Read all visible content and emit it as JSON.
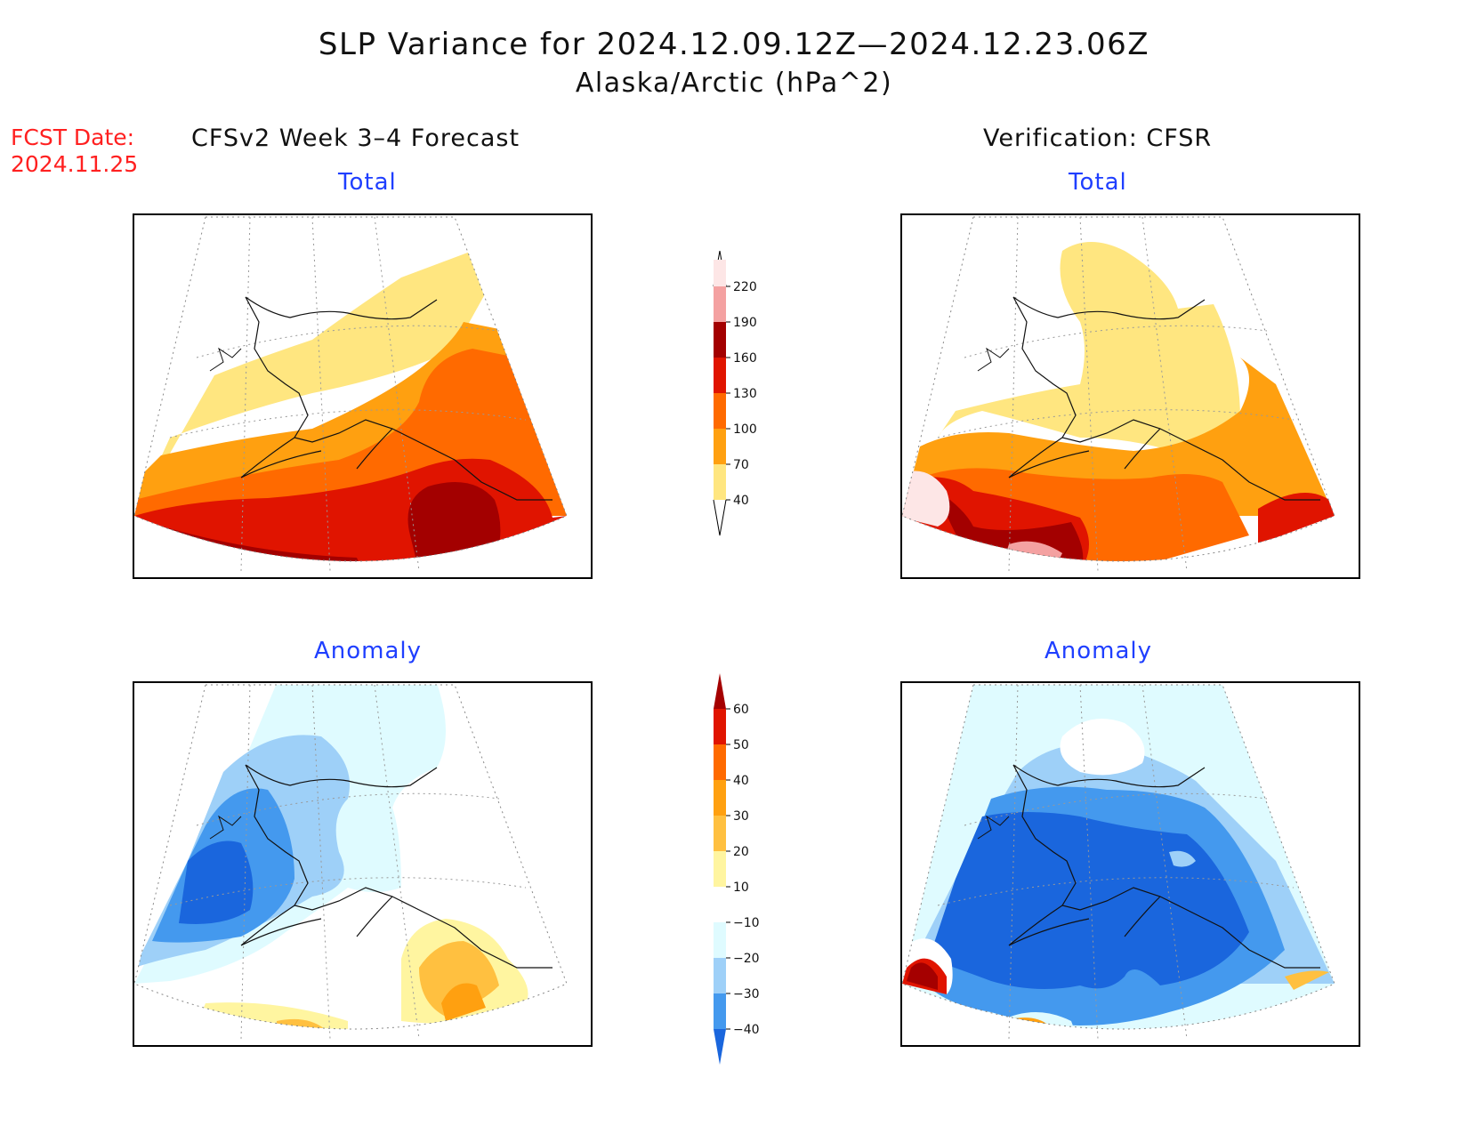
{
  "title": {
    "line1": "SLP Variance for 2024.12.09.12Z—2024.12.23.06Z",
    "line2": "Alaska/Arctic (hPa^2)"
  },
  "fcst": {
    "label": "FCST Date:",
    "date": "2024.11.25"
  },
  "columns": {
    "left": "CFSv2 Week 3–4 Forecast",
    "right": "Verification: CFSR"
  },
  "subtitles": {
    "total": "Total",
    "anomaly": "Anomaly"
  },
  "colorbars": {
    "total": {
      "levels": [
        "220",
        "190",
        "160",
        "130",
        "100",
        "70",
        "40"
      ],
      "colors": [
        "#fde6e6",
        "#f4a1a1",
        "#a30000",
        "#e01400",
        "#ff6a00",
        "#ffa010",
        "#ffe680"
      ]
    },
    "anomaly": {
      "levels": [
        "60",
        "50",
        "40",
        "30",
        "20",
        "10",
        "−10",
        "−20",
        "−30",
        "−40"
      ],
      "colors": [
        "#a50000",
        "#e01400",
        "#ff6a00",
        "#ffa010",
        "#ffc040",
        "#fff5a0",
        "#ffffff",
        "#dffbff",
        "#9ed0f8",
        "#4499ee",
        "#1a66dd",
        "#1a66dd"
      ]
    }
  },
  "map_colors": {
    "total": [
      "#ffe680",
      "#ffa010",
      "#ff6a00",
      "#e01400",
      "#a30000",
      "#f4a1a1",
      "#fde6e6"
    ],
    "anomaly_neg": [
      "#dffbff",
      "#9ed0f8",
      "#4499ee",
      "#1a66dd"
    ],
    "anomaly_pos": [
      "#fff5a0",
      "#ffc040",
      "#ffa010",
      "#ff6a00",
      "#e01400",
      "#a50000"
    ]
  }
}
